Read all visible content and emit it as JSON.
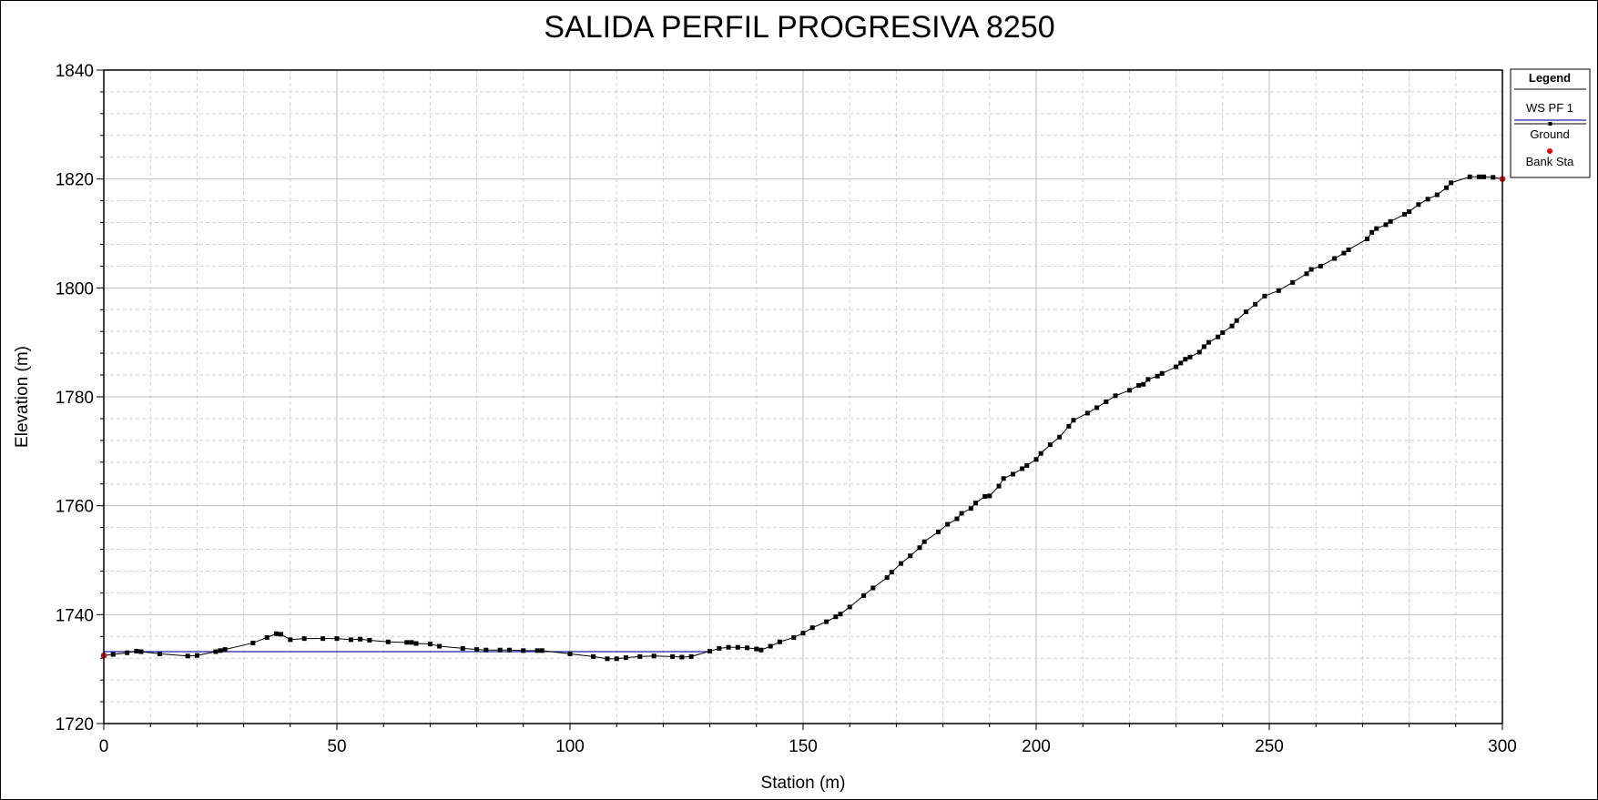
{
  "chart_data": {
    "type": "line",
    "title": "SALIDA PERFIL PROGRESIVA 8250",
    "xlabel": "Station (m)",
    "ylabel": "Elevation (m)",
    "xlim": [
      0,
      300
    ],
    "ylim": [
      1720,
      1840
    ],
    "xticks": [
      0,
      50,
      100,
      150,
      200,
      250,
      300
    ],
    "yticks": [
      1720,
      1740,
      1760,
      1780,
      1800,
      1820,
      1840
    ],
    "grid": true,
    "legend": {
      "title": "Legend",
      "placement": "right",
      "entries": [
        {
          "name": "WS PF 1",
          "color": "#1f1fb4",
          "marker": "none"
        },
        {
          "name": "Ground",
          "color": "#000000",
          "marker": "square"
        },
        {
          "name": "Bank Sta",
          "color": "#e00000",
          "marker": "circle"
        }
      ]
    },
    "series": [
      {
        "name": "WS PF 1",
        "color": "#1f1fb4",
        "x": [
          0,
          130
        ],
        "y": [
          1733.2,
          1733.2
        ]
      },
      {
        "name": "Ground",
        "color": "#000000",
        "x": [
          0,
          2,
          5,
          7,
          8,
          12,
          18,
          20,
          24,
          25,
          26,
          32,
          35,
          37,
          38,
          40,
          43,
          47,
          50,
          53,
          55,
          57,
          61,
          65,
          66,
          67,
          70,
          72,
          77,
          80,
          82,
          85,
          87,
          90,
          93,
          94,
          100,
          105,
          108,
          110,
          112,
          115,
          118,
          122,
          124,
          126,
          130,
          132,
          134,
          136,
          138,
          140,
          141,
          143,
          145,
          148,
          150,
          152,
          155,
          157,
          158,
          160,
          163,
          165,
          168,
          169,
          171,
          173,
          175,
          176,
          179,
          181,
          183,
          184,
          186,
          187,
          189,
          190,
          192,
          193,
          195,
          197,
          198,
          200,
          201,
          203,
          205,
          207,
          208,
          211,
          213,
          215,
          217,
          220,
          222,
          223,
          224,
          226,
          227,
          230,
          231,
          232,
          233,
          235,
          236,
          237,
          239,
          240,
          242,
          243,
          245,
          247,
          249,
          252,
          255,
          258,
          259,
          261,
          264,
          266,
          267,
          271,
          272,
          273,
          275,
          276,
          279,
          280,
          282,
          284,
          286,
          288,
          289,
          293,
          295,
          296,
          298,
          300
        ],
        "y": [
          1732.5,
          1732.7,
          1733.0,
          1733.3,
          1733.2,
          1732.8,
          1732.4,
          1732.5,
          1733.2,
          1733.4,
          1733.6,
          1734.8,
          1735.8,
          1736.5,
          1736.4,
          1735.4,
          1735.6,
          1735.6,
          1735.6,
          1735.4,
          1735.5,
          1735.3,
          1735.0,
          1734.9,
          1734.9,
          1734.7,
          1734.6,
          1734.2,
          1733.8,
          1733.6,
          1733.5,
          1733.5,
          1733.5,
          1733.4,
          1733.4,
          1733.4,
          1732.8,
          1732.3,
          1731.9,
          1731.9,
          1732.1,
          1732.3,
          1732.4,
          1732.3,
          1732.2,
          1732.3,
          1733.3,
          1733.8,
          1734.0,
          1734.0,
          1733.9,
          1733.7,
          1733.5,
          1734.2,
          1735.0,
          1735.8,
          1736.6,
          1737.6,
          1738.7,
          1739.6,
          1740.1,
          1741.4,
          1743.5,
          1744.9,
          1746.8,
          1747.8,
          1749.4,
          1750.8,
          1752.3,
          1753.4,
          1755.2,
          1756.6,
          1757.6,
          1758.6,
          1759.5,
          1760.5,
          1761.7,
          1761.8,
          1763.6,
          1765.0,
          1765.8,
          1766.8,
          1767.4,
          1768.5,
          1769.6,
          1771.2,
          1772.6,
          1774.6,
          1775.7,
          1777.0,
          1778.0,
          1779.1,
          1780.2,
          1781.2,
          1782.1,
          1782.3,
          1783.2,
          1783.8,
          1784.3,
          1785.5,
          1786.2,
          1786.9,
          1787.3,
          1788.2,
          1789.2,
          1790.0,
          1791.0,
          1791.8,
          1793.0,
          1794.0,
          1795.6,
          1797.0,
          1798.5,
          1799.5,
          1801.0,
          1802.6,
          1803.4,
          1804.0,
          1805.4,
          1806.4,
          1807.0,
          1809.0,
          1810.2,
          1810.9,
          1811.6,
          1812.2,
          1813.5,
          1814.0,
          1815.3,
          1816.3,
          1817.1,
          1818.4,
          1819.3,
          1820.4,
          1820.4,
          1820.4,
          1820.3,
          1820.0
        ]
      },
      {
        "name": "Bank Sta",
        "color": "#e00000",
        "x": [
          0,
          300
        ],
        "y": [
          1732.5,
          1820.0
        ]
      }
    ]
  }
}
